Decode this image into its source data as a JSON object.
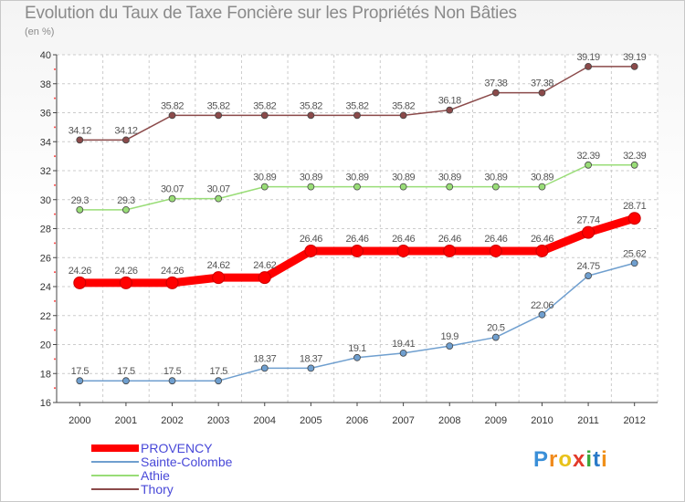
{
  "title": "Evolution du Taux de Taxe Foncière sur les Propriétés Non Bâties",
  "subtitle": "(en %)",
  "logo": {
    "text": "Proxiti",
    "letters": [
      "P",
      "r",
      "o",
      "x",
      "i",
      "t",
      "i"
    ],
    "colors": [
      "#3a8fd8",
      "#f08a1c",
      "#e8c21a",
      "#e23a2a",
      "#3aa83a",
      "#2a7ac8",
      "#f0901a"
    ]
  },
  "chart_data": {
    "type": "line",
    "title": "Evolution du Taux de Taxe Foncière sur les Propriétés Non Bâties",
    "ylabel": "(en %)",
    "xlabel": "",
    "x": [
      "2000",
      "2001",
      "2002",
      "2003",
      "2004",
      "2005",
      "2006",
      "2007",
      "2008",
      "2009",
      "2010",
      "2011",
      "2012"
    ],
    "ylim": [
      16,
      40
    ],
    "yticks": [
      16,
      18,
      20,
      22,
      24,
      26,
      28,
      30,
      32,
      34,
      36,
      38,
      40
    ],
    "grid": true,
    "legend_position": "bottom-left",
    "series": [
      {
        "name": "PROVENCY",
        "color": "#ff0000",
        "values": [
          24.26,
          24.26,
          24.26,
          24.62,
          24.62,
          26.46,
          26.46,
          26.46,
          26.46,
          26.46,
          26.46,
          27.74,
          28.71
        ],
        "labels": [
          "24.26",
          "24.26",
          "24.26",
          "24.62",
          "24.62",
          "26.46",
          "26.46",
          "26.46",
          "26.46",
          "26.46",
          "26.46",
          "27.74",
          "28.71"
        ]
      },
      {
        "name": "Sainte-Colombe",
        "color": "#6f9fcf",
        "values": [
          17.5,
          17.5,
          17.5,
          17.5,
          18.37,
          18.37,
          19.1,
          19.41,
          19.9,
          20.5,
          22.06,
          24.75,
          25.62
        ],
        "labels": [
          "17.5",
          "17.5",
          "17.5",
          "17.5",
          "18.37",
          "18.37",
          "19.1",
          "19.41",
          "19.9",
          "20.5",
          "22.06",
          "24.75",
          "25.62"
        ]
      },
      {
        "name": "Athie",
        "color": "#99dd77",
        "values": [
          29.3,
          29.3,
          30.07,
          30.07,
          30.89,
          30.89,
          30.89,
          30.89,
          30.89,
          30.89,
          30.89,
          32.39,
          32.39
        ],
        "labels": [
          "29.3",
          "29.3",
          "30.07",
          "30.07",
          "30.89",
          "30.89",
          "30.89",
          "30.89",
          "30.89",
          "30.89",
          "30.89",
          "32.39",
          "32.39"
        ]
      },
      {
        "name": "Thory",
        "color": "#8b4a4a",
        "values": [
          34.12,
          34.12,
          35.82,
          35.82,
          35.82,
          35.82,
          35.82,
          35.82,
          36.18,
          37.38,
          37.38,
          39.19,
          39.19
        ],
        "labels": [
          "34.12",
          "34.12",
          "35.82",
          "35.82",
          "35.82",
          "35.82",
          "35.82",
          "35.82",
          "36.18",
          "37.38",
          "37.38",
          "39.19",
          "39.19"
        ]
      }
    ]
  }
}
